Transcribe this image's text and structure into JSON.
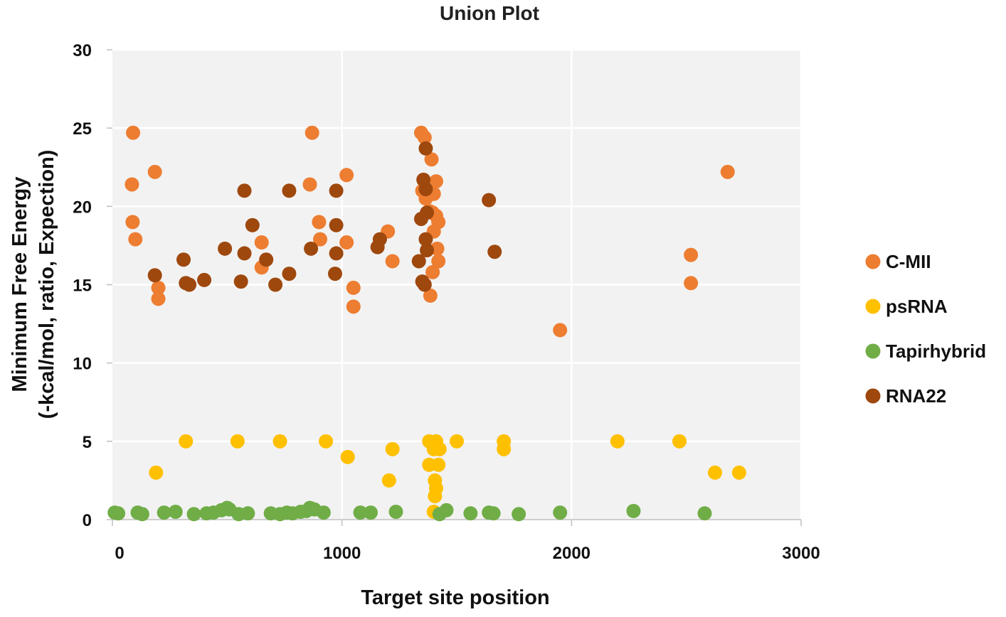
{
  "chart_data": {
    "type": "scatter",
    "title": "Union Plot",
    "xlabel": "Target site position",
    "ylabel_line1": "Minimum Free Energy",
    "ylabel_line2": "(-kcal/mol, ratio, Expection)",
    "xlim": [
      0,
      3000
    ],
    "ylim": [
      0,
      30
    ],
    "xticks": [
      "0",
      "1000",
      "2000",
      "3000"
    ],
    "yticks": [
      "0",
      "5",
      "10",
      "15",
      "20",
      "25",
      "30"
    ],
    "grid": true,
    "legend_position": "right",
    "series": [
      {
        "name": "C-MII",
        "color": "#ED7D31",
        "points": [
          [
            90,
            24.7
          ],
          [
            85,
            21.4
          ],
          [
            88,
            19.0
          ],
          [
            100,
            17.9
          ],
          [
            185,
            22.2
          ],
          [
            200,
            14.8
          ],
          [
            200,
            14.1
          ],
          [
            650,
            17.7
          ],
          [
            650,
            16.1
          ],
          [
            870,
            24.7
          ],
          [
            860,
            21.4
          ],
          [
            900,
            19.0
          ],
          [
            905,
            17.9
          ],
          [
            1020,
            22.0
          ],
          [
            1020,
            17.7
          ],
          [
            1050,
            14.8
          ],
          [
            1050,
            13.6
          ],
          [
            1200,
            18.4
          ],
          [
            1220,
            16.5
          ],
          [
            1345,
            24.7
          ],
          [
            1360,
            24.4
          ],
          [
            1390,
            23.0
          ],
          [
            1350,
            21.0
          ],
          [
            1365,
            20.5
          ],
          [
            1400,
            20.8
          ],
          [
            1410,
            21.6
          ],
          [
            1380,
            19.7
          ],
          [
            1395,
            19.6
          ],
          [
            1410,
            19.4
          ],
          [
            1420,
            19.0
          ],
          [
            1400,
            18.4
          ],
          [
            1415,
            17.3
          ],
          [
            1420,
            16.5
          ],
          [
            1395,
            15.8
          ],
          [
            1385,
            14.3
          ],
          [
            1950,
            12.1
          ],
          [
            2520,
            16.9
          ],
          [
            2520,
            15.1
          ],
          [
            2680,
            22.2
          ]
        ]
      },
      {
        "name": "psRNA",
        "color": "#FFC000",
        "points": [
          [
            190,
            3.0
          ],
          [
            320,
            5.0
          ],
          [
            545,
            5.0
          ],
          [
            730,
            5.0
          ],
          [
            930,
            5.0
          ],
          [
            1025,
            4.0
          ],
          [
            1220,
            4.5
          ],
          [
            1205,
            2.5
          ],
          [
            1380,
            5.0
          ],
          [
            1410,
            5.0
          ],
          [
            1400,
            4.5
          ],
          [
            1425,
            4.5
          ],
          [
            1380,
            3.5
          ],
          [
            1420,
            3.5
          ],
          [
            1405,
            2.5
          ],
          [
            1410,
            2.0
          ],
          [
            1405,
            1.5
          ],
          [
            1400,
            0.5
          ],
          [
            1500,
            5.0
          ],
          [
            1705,
            5.0
          ],
          [
            1705,
            4.5
          ],
          [
            2200,
            5.0
          ],
          [
            2470,
            5.0
          ],
          [
            2625,
            3.0
          ],
          [
            2730,
            3.0
          ]
        ]
      },
      {
        "name": "Tapirhybrid",
        "color": "#70AD47",
        "points": [
          [
            10,
            0.45
          ],
          [
            25,
            0.4
          ],
          [
            110,
            0.45
          ],
          [
            130,
            0.35
          ],
          [
            225,
            0.45
          ],
          [
            275,
            0.5
          ],
          [
            355,
            0.35
          ],
          [
            410,
            0.4
          ],
          [
            440,
            0.45
          ],
          [
            475,
            0.6
          ],
          [
            500,
            0.75
          ],
          [
            510,
            0.65
          ],
          [
            550,
            0.35
          ],
          [
            590,
            0.4
          ],
          [
            690,
            0.4
          ],
          [
            730,
            0.35
          ],
          [
            760,
            0.45
          ],
          [
            785,
            0.4
          ],
          [
            820,
            0.5
          ],
          [
            845,
            0.55
          ],
          [
            860,
            0.75
          ],
          [
            880,
            0.65
          ],
          [
            920,
            0.45
          ],
          [
            1080,
            0.45
          ],
          [
            1125,
            0.45
          ],
          [
            1235,
            0.5
          ],
          [
            1425,
            0.35
          ],
          [
            1455,
            0.6
          ],
          [
            1560,
            0.4
          ],
          [
            1640,
            0.45
          ],
          [
            1660,
            0.4
          ],
          [
            1770,
            0.35
          ],
          [
            1950,
            0.45
          ],
          [
            2270,
            0.55
          ],
          [
            2580,
            0.4
          ]
        ]
      },
      {
        "name": "RNA22",
        "color": "#9E480E",
        "points": [
          [
            185,
            15.6
          ],
          [
            310,
            16.6
          ],
          [
            320,
            15.1
          ],
          [
            335,
            15.0
          ],
          [
            400,
            15.3
          ],
          [
            490,
            17.3
          ],
          [
            560,
            15.2
          ],
          [
            575,
            17.0
          ],
          [
            575,
            21.0
          ],
          [
            610,
            18.8
          ],
          [
            670,
            16.6
          ],
          [
            710,
            15.0
          ],
          [
            770,
            15.7
          ],
          [
            770,
            21.0
          ],
          [
            865,
            17.3
          ],
          [
            975,
            21.0
          ],
          [
            975,
            18.8
          ],
          [
            975,
            17.0
          ],
          [
            970,
            15.7
          ],
          [
            1155,
            17.4
          ],
          [
            1165,
            17.9
          ],
          [
            1335,
            16.5
          ],
          [
            1345,
            19.2
          ],
          [
            1350,
            15.2
          ],
          [
            1360,
            15.0
          ],
          [
            1355,
            21.7
          ],
          [
            1365,
            21.1
          ],
          [
            1370,
            19.6
          ],
          [
            1365,
            17.9
          ],
          [
            1370,
            17.2
          ],
          [
            1365,
            23.7
          ],
          [
            1640,
            20.4
          ],
          [
            1665,
            17.1
          ]
        ]
      }
    ]
  }
}
